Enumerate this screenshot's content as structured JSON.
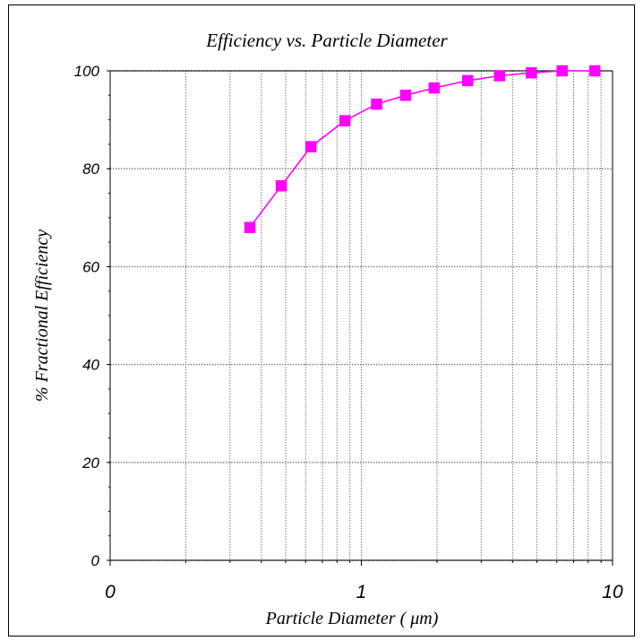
{
  "chart_data": {
    "type": "line",
    "title": "Efficiency vs. Particle Diameter",
    "xlabel": "Particle Diameter ( μm)",
    "ylabel": "% Fractional Efficiency",
    "x_scale": "log",
    "xlim": [
      0.1,
      10
    ],
    "ylim": [
      0,
      100
    ],
    "x_ticks": [
      {
        "value": 0.1,
        "label": "0"
      },
      {
        "value": 1,
        "label": "1"
      },
      {
        "value": 10,
        "label": "10"
      }
    ],
    "y_ticks": [
      {
        "value": 0,
        "label": "0"
      },
      {
        "value": 20,
        "label": "20"
      },
      {
        "value": 40,
        "label": "40"
      },
      {
        "value": 60,
        "label": "60"
      },
      {
        "value": 80,
        "label": "80"
      },
      {
        "value": 100,
        "label": "100"
      }
    ],
    "grid": true,
    "legend": "none",
    "series": [
      {
        "color": "#ff00ff",
        "marker": "square",
        "x": [
          0.36,
          0.48,
          0.63,
          0.86,
          1.15,
          1.5,
          1.95,
          2.65,
          3.55,
          4.75,
          6.3,
          8.5
        ],
        "y": [
          68,
          76.5,
          84.5,
          89.8,
          93.2,
          95,
          96.5,
          98,
          99,
          99.6,
          100,
          100
        ]
      }
    ]
  }
}
